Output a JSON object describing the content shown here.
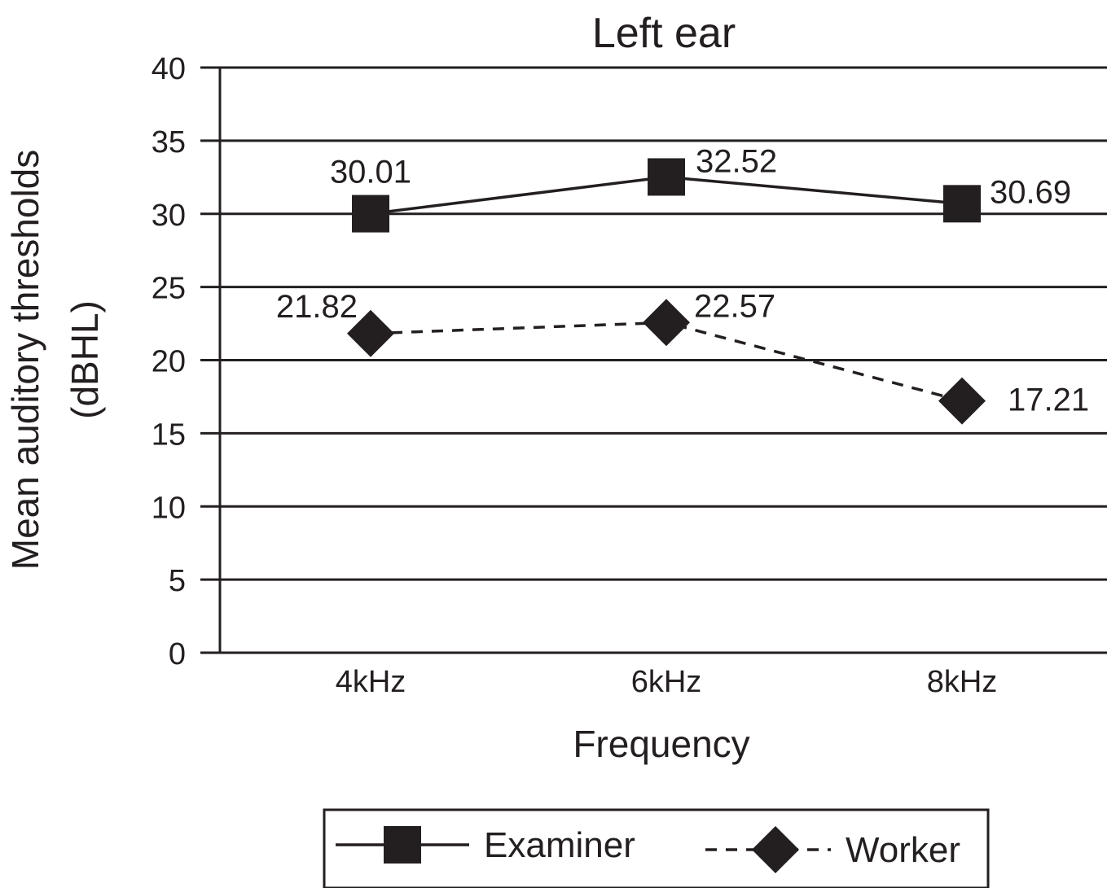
{
  "chart_data": {
    "type": "line",
    "title": "Left ear",
    "xlabel": "Frequency",
    "ylabel_lines": [
      "Mean auditory thresholds",
      "(dBHL)"
    ],
    "categories": [
      "4kHz",
      "6kHz",
      "8kHz"
    ],
    "ylim": [
      0,
      40
    ],
    "yticks": [
      0,
      5,
      10,
      15,
      20,
      25,
      30,
      35,
      40
    ],
    "grid": "horizontal",
    "legend_position": "bottom",
    "series": [
      {
        "name": "Examiner",
        "values": [
          30.01,
          32.52,
          30.69
        ],
        "labels": [
          "30.01",
          "32.52",
          "30.69"
        ],
        "line_style": "solid",
        "marker": "square",
        "color": "#231f20"
      },
      {
        "name": "Worker",
        "values": [
          21.82,
          22.57,
          17.21
        ],
        "labels": [
          "21.82",
          "22.57",
          "17.21"
        ],
        "line_style": "dashed",
        "marker": "diamond",
        "color": "#231f20"
      }
    ]
  }
}
